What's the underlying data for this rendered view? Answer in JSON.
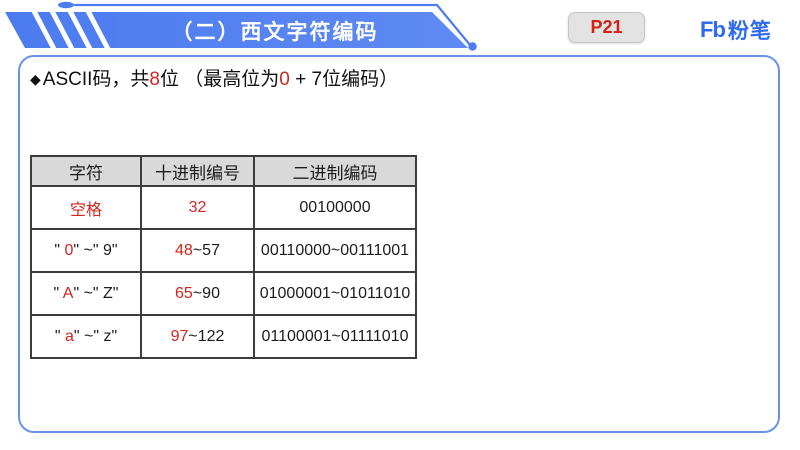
{
  "header": {
    "title": "（二）西文字符编码",
    "page_badge": "P21",
    "logo": {
      "mark": "Fb",
      "name": "粉笔"
    }
  },
  "bullet": {
    "diamond": "◆",
    "segments": [
      {
        "t": "ASCII码，共"
      },
      {
        "t": "8",
        "c": "red"
      },
      {
        "t": "位 （最高位为"
      },
      {
        "t": "0",
        "c": "red"
      },
      {
        "t": " + 7位编码）"
      }
    ]
  },
  "table": {
    "headers": [
      "字符",
      "十进制编号",
      "二进制编码"
    ],
    "rows": [
      [
        [
          {
            "t": "空格",
            "c": "red"
          }
        ],
        [
          {
            "t": "32",
            "c": "red"
          }
        ],
        [
          {
            "t": "00100000"
          }
        ]
      ],
      [
        [
          {
            "t": "\" "
          },
          {
            "t": "0",
            "c": "red"
          },
          {
            "t": "\" ~\" 9\""
          }
        ],
        [
          {
            "t": "48",
            "c": "red"
          },
          {
            "t": "~57"
          }
        ],
        [
          {
            "t": "00110000~00111001"
          }
        ]
      ],
      [
        [
          {
            "t": "\" "
          },
          {
            "t": "A",
            "c": "red"
          },
          {
            "t": "\" ~\" Z\""
          }
        ],
        [
          {
            "t": "65",
            "c": "red"
          },
          {
            "t": "~90"
          }
        ],
        [
          {
            "t": "01000001~01011010"
          }
        ]
      ],
      [
        [
          {
            "t": "\" "
          },
          {
            "t": "a",
            "c": "red"
          },
          {
            "t": "\" ~\" z\""
          }
        ],
        [
          {
            "t": "97",
            "c": "red"
          },
          {
            "t": "~122"
          }
        ],
        [
          {
            "t": "01100001~01111010"
          }
        ]
      ]
    ]
  },
  "colors": {
    "banner_blue": "#4c7bef",
    "banner_blue_light": "#5f8af3",
    "outline_blue": "#4d7cf0",
    "box_border_blue": "#6b92e8",
    "logo_blue": "#2e6bf0",
    "accent_red": "#d0261e",
    "badge_bg": "#e3e3e3",
    "table_header_gray": "#d9d9d9",
    "table_border": "#3c3c3c"
  }
}
